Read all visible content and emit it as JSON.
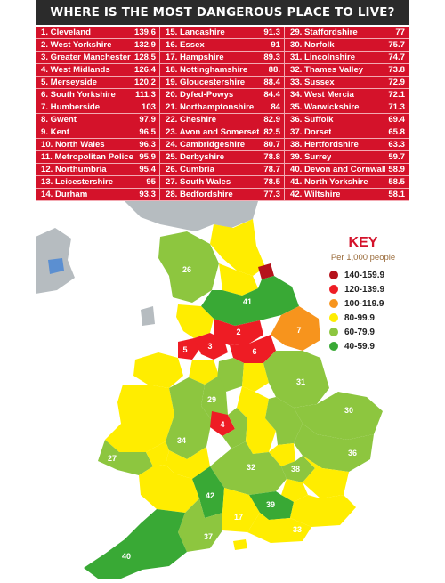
{
  "title": "WHERE IS THE MOST DANGEROUS PLACE TO LIVE?",
  "rankings": [
    {
      "rank": "1.",
      "name": "Cleveland",
      "value": "139.6"
    },
    {
      "rank": "2.",
      "name": "West Yorkshire",
      "value": "132.9"
    },
    {
      "rank": "3.",
      "name": "Greater Manchester",
      "value": "128.5"
    },
    {
      "rank": "4.",
      "name": "West Midlands",
      "value": "126.4"
    },
    {
      "rank": "5.",
      "name": "Merseyside",
      "value": "120.2"
    },
    {
      "rank": "6.",
      "name": "South Yorkshire",
      "value": "111.3"
    },
    {
      "rank": "7.",
      "name": "Humberside",
      "value": "103"
    },
    {
      "rank": "8.",
      "name": "Gwent",
      "value": "97.9"
    },
    {
      "rank": "9.",
      "name": "Kent",
      "value": "96.5"
    },
    {
      "rank": "10.",
      "name": "North Wales",
      "value": "96.3"
    },
    {
      "rank": "11.",
      "name": "Metropolitan Police",
      "value": "95.9"
    },
    {
      "rank": "12.",
      "name": "Northumbria",
      "value": "95.4"
    },
    {
      "rank": "13.",
      "name": "Leicestershire",
      "value": "95"
    },
    {
      "rank": "14.",
      "name": "Durham",
      "value": "93.3"
    },
    {
      "rank": "15.",
      "name": "Lancashire",
      "value": "91.3"
    },
    {
      "rank": "16.",
      "name": "Essex",
      "value": "91"
    },
    {
      "rank": "17.",
      "name": "Hampshire",
      "value": "89.3"
    },
    {
      "rank": "18.",
      "name": "Nottinghamshire",
      "value": "88."
    },
    {
      "rank": "19.",
      "name": "Gloucestershire",
      "value": "88.4"
    },
    {
      "rank": "20.",
      "name": "Dyfed-Powys",
      "value": "84.4"
    },
    {
      "rank": "21.",
      "name": "Northamptonshire",
      "value": "84"
    },
    {
      "rank": "22.",
      "name": "Cheshire",
      "value": "82.9"
    },
    {
      "rank": "23.",
      "name": "Avon and Somerset",
      "value": "82.5"
    },
    {
      "rank": "24.",
      "name": "Cambridgeshire",
      "value": "80.7"
    },
    {
      "rank": "25.",
      "name": "Derbyshire",
      "value": "78.8"
    },
    {
      "rank": "26.",
      "name": "Cumbria",
      "value": "78.7"
    },
    {
      "rank": "27.",
      "name": "South Wales",
      "value": "78.5"
    },
    {
      "rank": "28.",
      "name": "Bedfordshire",
      "value": "77.3"
    },
    {
      "rank": "29.",
      "name": "Staffordshire",
      "value": "77"
    },
    {
      "rank": "30.",
      "name": "Norfolk",
      "value": "75.7"
    },
    {
      "rank": "31.",
      "name": "Lincolnshire",
      "value": "74.7"
    },
    {
      "rank": "32.",
      "name": "Thames Valley",
      "value": "73.8"
    },
    {
      "rank": "33.",
      "name": "Sussex",
      "value": "72.9"
    },
    {
      "rank": "34.",
      "name": "West Mercia",
      "value": "72.1"
    },
    {
      "rank": "35.",
      "name": "Warwickshire",
      "value": "71.3"
    },
    {
      "rank": "36.",
      "name": "Suffolk",
      "value": "69.4"
    },
    {
      "rank": "37.",
      "name": "Dorset",
      "value": "65.8"
    },
    {
      "rank": "38.",
      "name": "Hertfordshire",
      "value": "63.3"
    },
    {
      "rank": "39.",
      "name": "Surrey",
      "value": "59.7"
    },
    {
      "rank": "40.",
      "name": "Devon and Cornwall",
      "value": "58.9"
    },
    {
      "rank": "41.",
      "name": "North Yorkshire",
      "value": "58.5"
    },
    {
      "rank": "42.",
      "name": "Wiltshire",
      "value": "58.1"
    }
  ],
  "key": {
    "title": "KEY",
    "subtitle": "Per 1,000 people",
    "bands": [
      {
        "label": "140-159.9",
        "color": "#b5121b"
      },
      {
        "label": "120-139.9",
        "color": "#ee1c24"
      },
      {
        "label": "100-119.9",
        "color": "#f7941d"
      },
      {
        "label": "80-99.9",
        "color": "#ffed00"
      },
      {
        "label": "60-79.9",
        "color": "#8dc63f"
      },
      {
        "label": "40-59.9",
        "color": "#39a935"
      }
    ]
  },
  "map_labels": [
    "26",
    "41",
    "2",
    "3",
    "5",
    "6",
    "7",
    "31",
    "29",
    "4",
    "30",
    "34",
    "36",
    "27",
    "32",
    "38",
    "42",
    "39",
    "33",
    "40",
    "37",
    "17"
  ],
  "colors": {
    "title_bg": "#2b2b2b",
    "table_bg": "#d4122a",
    "grey_region": "#b6bcc0",
    "sea_blue": "#5b8fd1"
  }
}
